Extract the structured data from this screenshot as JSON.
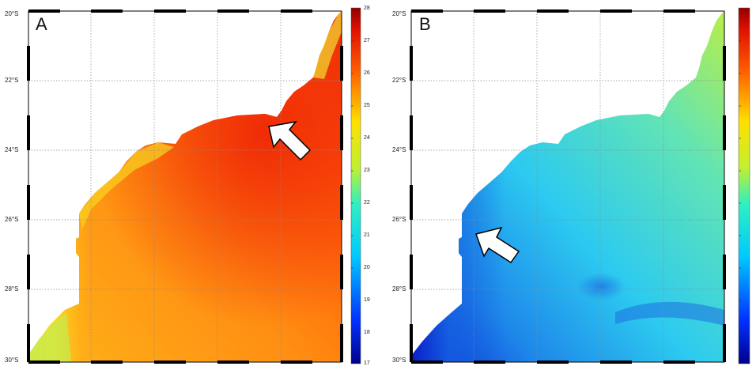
{
  "panels": [
    {
      "id": "a",
      "letter": "A",
      "lat_labels": [
        "20°S",
        "22°S",
        "24°S",
        "26°S",
        "28°S",
        "30°S"
      ],
      "colorbar": {
        "ticks": [
          "28",
          "27",
          "26",
          "25",
          "24",
          "23",
          "22",
          "21",
          "20",
          "19",
          "18",
          "17"
        ]
      }
    },
    {
      "id": "b",
      "letter": "B",
      "lat_labels": [
        "20°S",
        "22°S",
        "24°S",
        "26°S",
        "28°S",
        "30°S"
      ],
      "colorbar": {
        "ticks": []
      }
    }
  ],
  "colors": {
    "land": "#ffffff",
    "grid": "#8a8a8a",
    "panel_a_field": [
      "#f7f23a",
      "#fdb21a",
      "#ff8a10",
      "#ff5a08",
      "#ee2a06"
    ],
    "panel_b_field": [
      "#0a1cc8",
      "#1e86ea",
      "#2cd0f2",
      "#72e8a8",
      "#d6ee3a"
    ],
    "arrow_fill": "#ffffff",
    "arrow_stroke": "#000000"
  },
  "icons": [
    "arrow-annotation-icon"
  ]
}
